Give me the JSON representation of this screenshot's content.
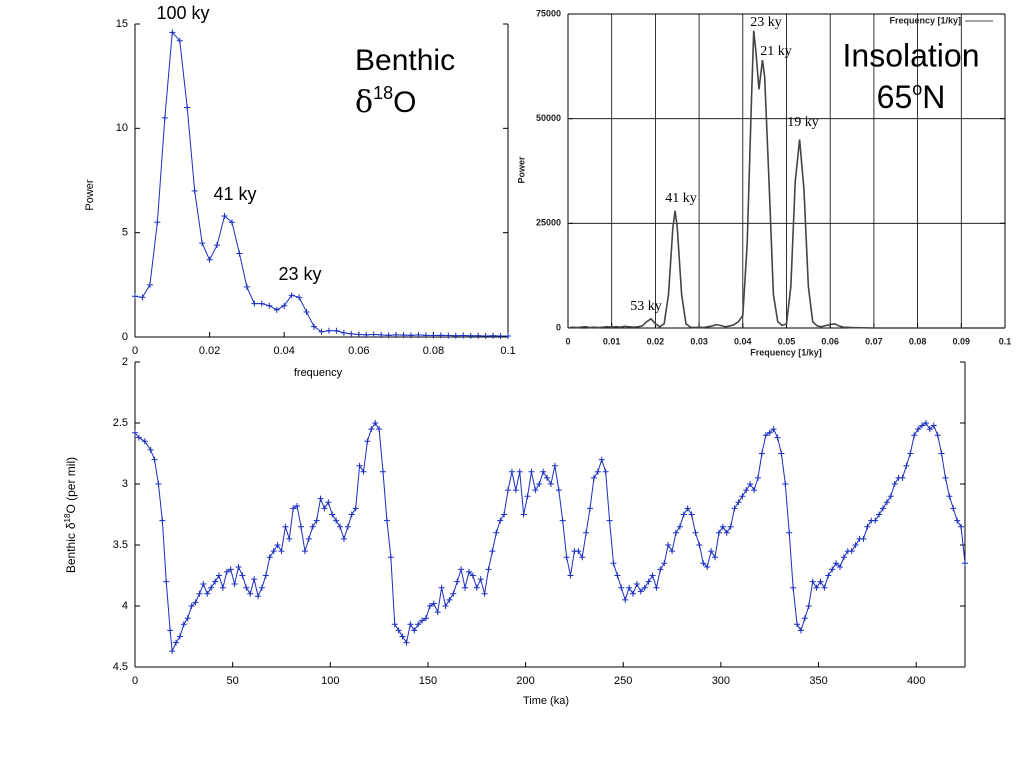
{
  "chart_data": [
    {
      "type": "line",
      "title": [
        "Benthic",
        "δ",
        "18",
        "O"
      ],
      "x_label": "frequency",
      "y_label": "Power",
      "annotations": [
        "100 ky",
        "41 ky",
        "23 ky"
      ],
      "color": "#1a2ec0",
      "marker": "+",
      "grid": false,
      "xlim": [
        0,
        0.1
      ],
      "xticks": [
        0,
        0.02,
        0.04,
        0.06,
        0.08,
        0.1
      ],
      "ylim": [
        0,
        15
      ],
      "yticks": [
        0,
        5,
        10,
        15
      ],
      "series": [
        {
          "name": "Benthic",
          "color": "#1a2ec0",
          "x": [
            0,
            0.002,
            0.004,
            0.006,
            0.008,
            0.01,
            0.012,
            0.014,
            0.016,
            0.018,
            0.02,
            0.022,
            0.024,
            0.026,
            0.028,
            0.03,
            0.032,
            0.034,
            0.036,
            0.038,
            0.04,
            0.042,
            0.044,
            0.046,
            0.048,
            0.05,
            0.052,
            0.054,
            0.056,
            0.058,
            0.06,
            0.062,
            0.064,
            0.066,
            0.068,
            0.07,
            0.072,
            0.074,
            0.076,
            0.078,
            0.08,
            0.082,
            0.084,
            0.086,
            0.088,
            0.09,
            0.092,
            0.094,
            0.096,
            0.098,
            0.1
          ],
          "values": [
            1.95,
            1.9,
            2.5,
            5.5,
            10.5,
            14.6,
            14.2,
            11,
            7,
            4.5,
            3.7,
            4.4,
            5.8,
            5.5,
            4,
            2.4,
            1.6,
            1.6,
            1.5,
            1.3,
            1.5,
            2,
            1.9,
            1.2,
            0.5,
            0.25,
            0.3,
            0.3,
            0.2,
            0.15,
            0.12,
            0.1,
            0.12,
            0.1,
            0.08,
            0.1,
            0.09,
            0.08,
            0.1,
            0.08,
            0.07,
            0.08,
            0.07,
            0.06,
            0.07,
            0.06,
            0.06,
            0.05,
            0.06,
            0.05,
            0.05
          ]
        }
      ]
    },
    {
      "type": "line",
      "title": [
        "Insolation",
        "65",
        "o",
        "N"
      ],
      "x_label": "Frequency [1/ky]",
      "y_label": "Power",
      "annotations": [
        "23 ky",
        "21 ky",
        "19 ky",
        "41 ky",
        "53 ky"
      ],
      "marker": null,
      "grid": true,
      "legend": "top-right",
      "xlim": [
        0,
        0.1
      ],
      "xticks": [
        0,
        0.01,
        0.02,
        0.03,
        0.04,
        0.05,
        0.06,
        0.07,
        0.08,
        0.09,
        0.1
      ],
      "ylim": [
        0,
        75000
      ],
      "yticks": [
        0,
        25000,
        50000,
        75000
      ],
      "series": [
        {
          "name": "Frequency [1/ky]",
          "color": "#444444",
          "x": [
            0,
            0.001,
            0.002,
            0.003,
            0.004,
            0.005,
            0.006,
            0.007,
            0.008,
            0.009,
            0.01,
            0.011,
            0.012,
            0.013,
            0.014,
            0.015,
            0.016,
            0.017,
            0.018,
            0.019,
            0.02,
            0.021,
            0.022,
            0.023,
            0.024,
            0.0245,
            0.025,
            0.026,
            0.027,
            0.028,
            0.029,
            0.03,
            0.031,
            0.032,
            0.033,
            0.034,
            0.035,
            0.036,
            0.037,
            0.038,
            0.039,
            0.04,
            0.041,
            0.042,
            0.0425,
            0.043,
            0.0437,
            0.0445,
            0.045,
            0.046,
            0.047,
            0.048,
            0.049,
            0.05,
            0.051,
            0.052,
            0.053,
            0.054,
            0.055,
            0.056,
            0.057,
            0.058,
            0.059,
            0.06,
            0.061,
            0.062,
            0.063,
            0.065,
            0.07,
            0.075,
            0.08,
            0.085,
            0.09,
            0.095,
            0.1
          ],
          "values": [
            0,
            200,
            100,
            200,
            300,
            100,
            200,
            100,
            200,
            300,
            200,
            300,
            200,
            400,
            300,
            200,
            300,
            500,
            1500,
            2200,
            1000,
            300,
            1000,
            8000,
            24000,
            28000,
            24000,
            8000,
            1000,
            200,
            100,
            200,
            100,
            300,
            500,
            800,
            600,
            300,
            500,
            800,
            1500,
            3000,
            20000,
            55000,
            71000,
            66000,
            57000,
            64000,
            60000,
            35000,
            8000,
            1500,
            600,
            1000,
            10000,
            35000,
            45000,
            33000,
            10000,
            1500,
            500,
            300,
            600,
            800,
            1000,
            500,
            200,
            100,
            0,
            0,
            0,
            0,
            0,
            0,
            0
          ]
        }
      ]
    },
    {
      "type": "line",
      "x_label": "Time (ka)",
      "y_label": [
        "Benthic",
        "δ",
        "18",
        "O (per mil)"
      ],
      "color": "#1a2ec0",
      "marker": "+",
      "grid": false,
      "xlim": [
        0,
        425
      ],
      "xticks": [
        0,
        50,
        100,
        150,
        200,
        250,
        300,
        350,
        400
      ],
      "ylim": [
        2,
        4.5
      ],
      "y_inverted": true,
      "yticks": [
        2,
        2.5,
        3,
        3.5,
        4,
        4.5
      ],
      "series": [
        {
          "name": "Benthic",
          "color": "#1a2ec0",
          "x": [
            0,
            2,
            5,
            8,
            10,
            12,
            14,
            16,
            18,
            19,
            21,
            23,
            25,
            27,
            29,
            31,
            33,
            35,
            37,
            39,
            41,
            43,
            45,
            47,
            49,
            51,
            53,
            55,
            57,
            59,
            61,
            63,
            65,
            67,
            69,
            71,
            73,
            75,
            77,
            79,
            81,
            83,
            85,
            87,
            89,
            91,
            93,
            95,
            97,
            99,
            101,
            103,
            105,
            107,
            109,
            111,
            113,
            115,
            117,
            119,
            121,
            123,
            125,
            127,
            129,
            131,
            133,
            135,
            137,
            139,
            141,
            143,
            145,
            147,
            149,
            151,
            153,
            155,
            157,
            159,
            161,
            163,
            165,
            167,
            169,
            171,
            173,
            175,
            177,
            179,
            181,
            183,
            185,
            187,
            189,
            191,
            193,
            195,
            197,
            199,
            201,
            203,
            205,
            207,
            209,
            211,
            213,
            215,
            217,
            219,
            221,
            223,
            225,
            227,
            229,
            231,
            233,
            235,
            237,
            239,
            241,
            243,
            245,
            247,
            249,
            251,
            253,
            255,
            257,
            259,
            261,
            263,
            265,
            267,
            269,
            271,
            273,
            275,
            277,
            279,
            281,
            283,
            285,
            287,
            289,
            291,
            293,
            295,
            297,
            299,
            301,
            303,
            305,
            307,
            309,
            311,
            313,
            315,
            317,
            319,
            321,
            323,
            325,
            327,
            329,
            331,
            333,
            335,
            337,
            339,
            341,
            343,
            345,
            347,
            349,
            351,
            353,
            355,
            357,
            359,
            361,
            363,
            365,
            367,
            369,
            371,
            373,
            375,
            377,
            379,
            381,
            383,
            385,
            387,
            389,
            391,
            393,
            395,
            397,
            399,
            401,
            403,
            405,
            407,
            409,
            411,
            413,
            415,
            417,
            419,
            421,
            423,
            425
          ],
          "values": [
            2.58,
            2.62,
            2.65,
            2.72,
            2.8,
            3,
            3.3,
            3.8,
            4.2,
            4.37,
            4.3,
            4.25,
            4.15,
            4.1,
            4,
            3.97,
            3.9,
            3.82,
            3.9,
            3.85,
            3.8,
            3.75,
            3.85,
            3.72,
            3.7,
            3.82,
            3.68,
            3.75,
            3.85,
            3.9,
            3.78,
            3.92,
            3.85,
            3.75,
            3.6,
            3.55,
            3.5,
            3.55,
            3.35,
            3.45,
            3.2,
            3.18,
            3.35,
            3.55,
            3.45,
            3.35,
            3.3,
            3.12,
            3.2,
            3.15,
            3.25,
            3.3,
            3.35,
            3.45,
            3.35,
            3.25,
            3.2,
            2.85,
            2.9,
            2.65,
            2.55,
            2.5,
            2.55,
            2.9,
            3.3,
            3.6,
            4.15,
            4.2,
            4.25,
            4.3,
            4.15,
            4.2,
            4.15,
            4.12,
            4.1,
            4,
            3.98,
            4.05,
            3.85,
            4,
            3.95,
            3.9,
            3.8,
            3.7,
            3.85,
            3.72,
            3.75,
            3.85,
            3.78,
            3.9,
            3.7,
            3.55,
            3.4,
            3.3,
            3.25,
            3.05,
            2.9,
            3.05,
            2.9,
            3.25,
            3.1,
            2.9,
            3.05,
            3,
            2.9,
            2.95,
            3,
            2.85,
            3.05,
            3.3,
            3.6,
            3.75,
            3.55,
            3.55,
            3.6,
            3.4,
            3.2,
            2.95,
            2.9,
            2.8,
            2.9,
            3.3,
            3.65,
            3.75,
            3.85,
            3.95,
            3.85,
            3.9,
            3.82,
            3.88,
            3.85,
            3.8,
            3.75,
            3.85,
            3.7,
            3.65,
            3.5,
            3.55,
            3.4,
            3.35,
            3.25,
            3.2,
            3.25,
            3.4,
            3.5,
            3.65,
            3.68,
            3.55,
            3.6,
            3.4,
            3.35,
            3.4,
            3.35,
            3.2,
            3.15,
            3.1,
            3.05,
            3,
            3.05,
            2.95,
            2.75,
            2.6,
            2.58,
            2.55,
            2.62,
            2.75,
            3,
            3.4,
            3.85,
            4.15,
            4.2,
            4.1,
            4,
            3.8,
            3.85,
            3.8,
            3.85,
            3.75,
            3.7,
            3.65,
            3.68,
            3.6,
            3.55,
            3.55,
            3.5,
            3.45,
            3.45,
            3.35,
            3.3,
            3.3,
            3.25,
            3.2,
            3.15,
            3.1,
            3,
            2.95,
            2.95,
            2.85,
            2.75,
            2.6,
            2.55,
            2.52,
            2.5,
            2.55,
            2.52,
            2.6,
            2.75,
            2.95,
            3.1,
            3.2,
            3.3,
            3.35,
            3.65
          ]
        }
      ]
    }
  ]
}
